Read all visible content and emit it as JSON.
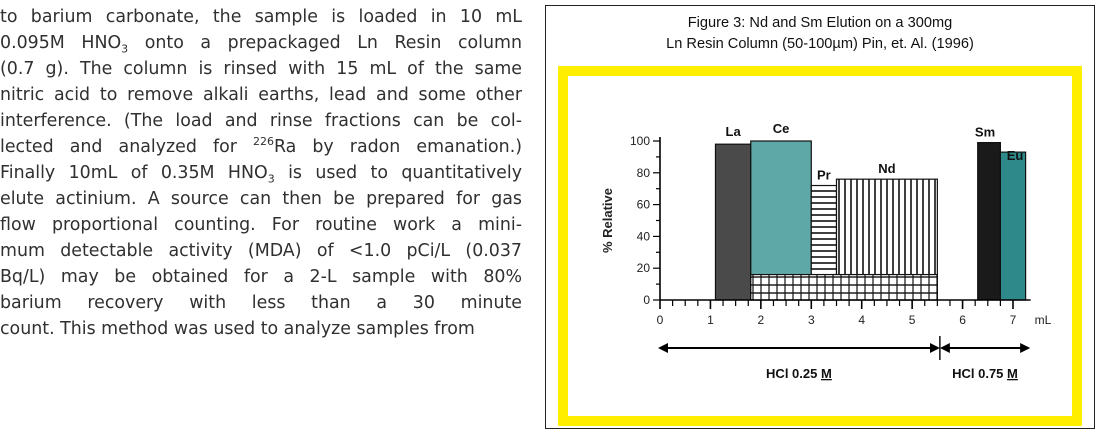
{
  "paragraph": {
    "l1": "to barium carbonate, the sample is loaded in 10 mL",
    "l2a": "0.095M HNO",
    "l2sub": "3",
    "l2b": " onto a prepackaged Ln Resin column",
    "l3": "(0.7 g). The column is rinsed with 15 mL of the same",
    "l4": "nitric acid to remove alkali earths, lead and some other",
    "l5": "interference. (The load and rinse fractions can be col-",
    "l6a": "lected and analyzed for ",
    "l6sup": "226",
    "l6b": "Ra by radon emanation.)",
    "l7a": "Finally 10mL of 0.35M HNO",
    "l7sub": "3",
    "l7b": " is used to quantitatively",
    "l8": "elute actinium. A source can then be prepared for gas",
    "l9": "flow proportional counting. For routine work a mini-",
    "l10": "mum detectable activity (MDA) of <1.0 pCi/L (0.037",
    "l11": "Bq/L) may be obtained for a 2-L sample with 80%",
    "l12": "barium recovery with less than a 30 minute",
    "l13": "count. This method was used to analyze samples from"
  },
  "figure": {
    "caption_line1": "Figure 3: Nd and Sm Elution on a 300mg",
    "caption_line2": "Ln Resin Column (50-100µm) Pin, et. Al. (1996)"
  },
  "colors": {
    "yellow_frame": "#ffee00",
    "la": "#4a4a4a",
    "ce": "#5fa8a8",
    "sm": "#1a1a1a",
    "eu": "#2e8a8a"
  },
  "chart_data": {
    "type": "bar",
    "xlabel": "mL",
    "ylabel": "% Relative",
    "xlim": [
      0,
      7.4
    ],
    "ylim": [
      0,
      100
    ],
    "x_ticks": [
      "0",
      "1",
      "2",
      "3",
      "4",
      "5",
      "6",
      "7"
    ],
    "y_ticks": [
      "0",
      "20",
      "40",
      "60",
      "80",
      "100"
    ],
    "series": [
      {
        "name": "La",
        "x0": 1.1,
        "x1": 1.8,
        "value": 98,
        "fill": "solid-dark"
      },
      {
        "name": "Ce",
        "x0": 1.8,
        "x1": 3.0,
        "value": 100,
        "fill": "solid-teal"
      },
      {
        "name": "Pr",
        "x0": 3.0,
        "x1": 3.5,
        "value": 72,
        "fill": "stripes-horizontal"
      },
      {
        "name": "Nd",
        "x0": 3.5,
        "x1": 5.5,
        "value": 76,
        "fill": "stripes-vertical"
      },
      {
        "name": "Sm",
        "x0": 6.3,
        "x1": 6.75,
        "value": 99,
        "fill": "solid-black"
      },
      {
        "name": "Eu",
        "x0": 6.75,
        "x1": 7.25,
        "value": 93,
        "fill": "solid-teal-dark"
      }
    ],
    "overlap_band": {
      "x0": 1.8,
      "x1": 5.5,
      "value": 16
    },
    "eluents": [
      {
        "label": "HCl 0.25 ",
        "conc": "M",
        "x0": 0.0,
        "x1": 5.55
      },
      {
        "label": "HCl 0.75 ",
        "conc": "M",
        "x0": 5.55,
        "x1": 7.3
      }
    ]
  }
}
